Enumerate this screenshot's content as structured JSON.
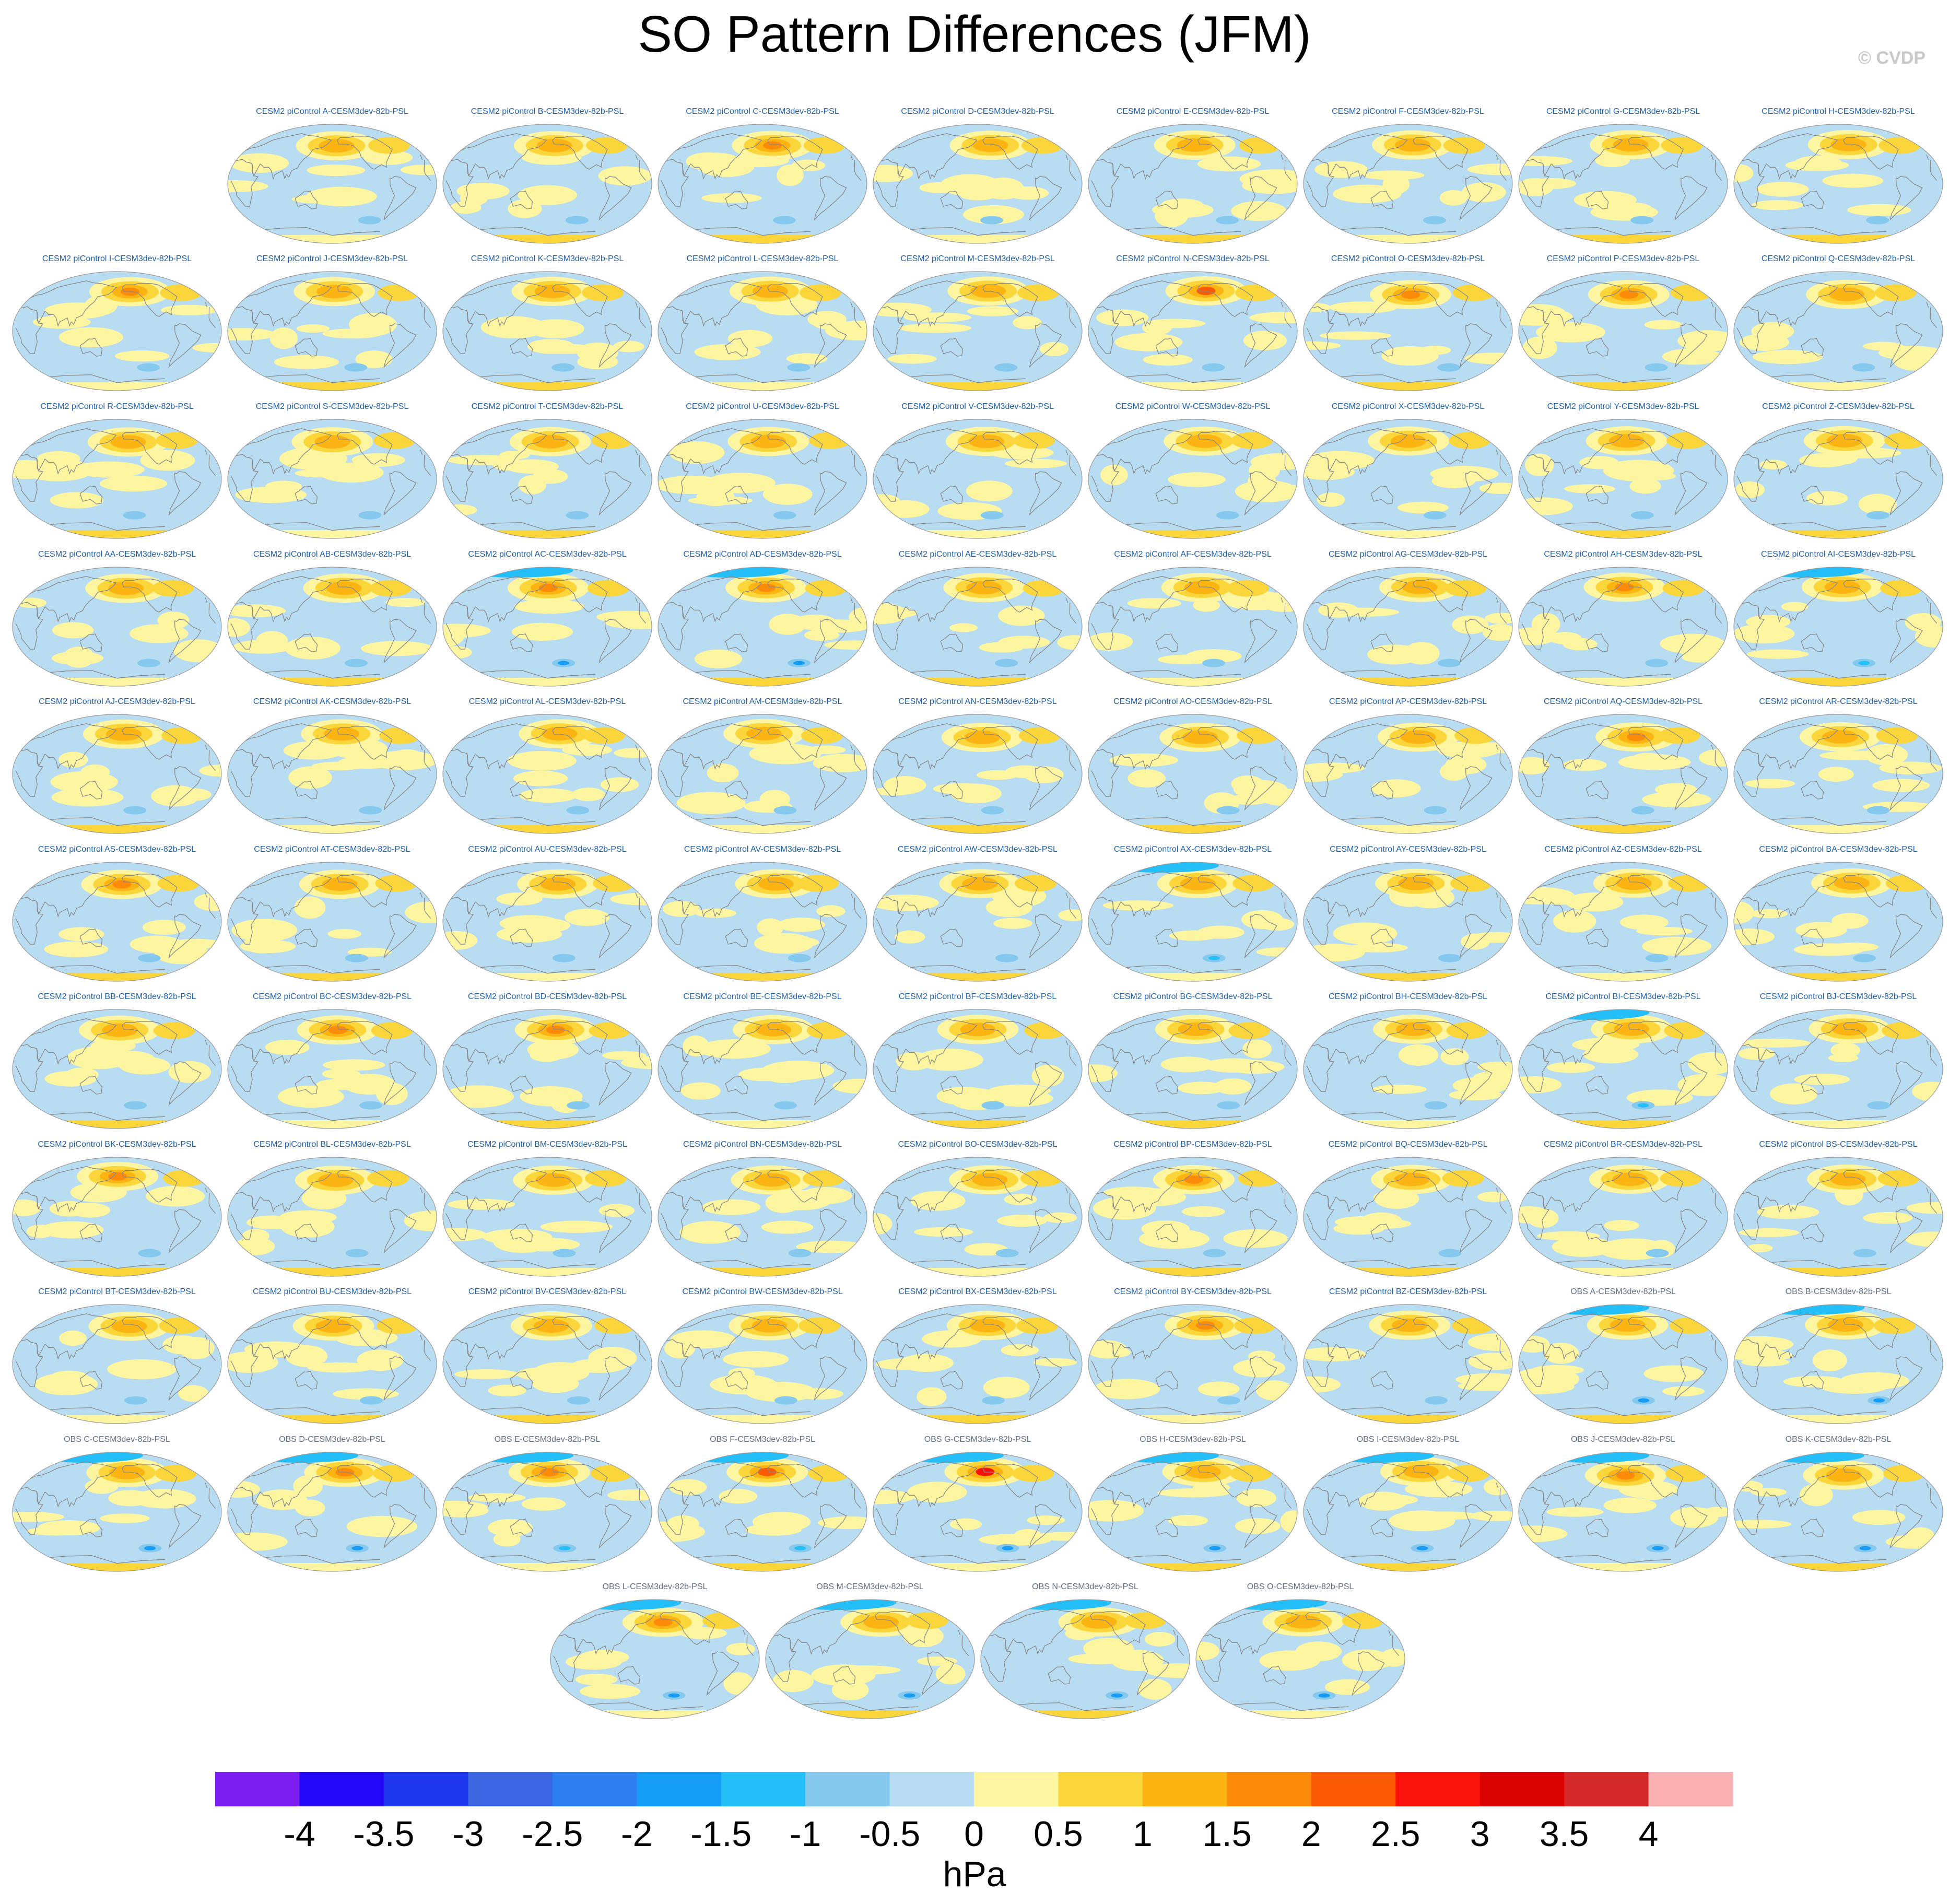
{
  "title": "SO Pattern Differences (JFM)",
  "credit": "© CVDP",
  "colors": {
    "levels": [
      "#7b1cf1",
      "#2208f6",
      "#1f36ef",
      "#3b67e3",
      "#2d7ff0",
      "#149cf7",
      "#24bff9",
      "#86c9ee",
      "#b8dcf2",
      "#fdf5a0",
      "#fbd63a",
      "#fcb413",
      "#fc8b0a",
      "#fb5a05",
      "#f91209",
      "#d90201",
      "#d42a2b",
      "#fbb0b3"
    ],
    "land_outline": "#8a8a8a",
    "title_model": "#1f5fa8",
    "title_obs": "#5f6f80"
  },
  "panel_titles": [
    "CESM2 piControl A-CESM3dev-82b-PSL",
    "CESM2 piControl B-CESM3dev-82b-PSL",
    "CESM2 piControl C-CESM3dev-82b-PSL",
    "CESM2 piControl D-CESM3dev-82b-PSL",
    "CESM2 piControl E-CESM3dev-82b-PSL",
    "CESM2 piControl F-CESM3dev-82b-PSL",
    "CESM2 piControl G-CESM3dev-82b-PSL",
    "CESM2 piControl H-CESM3dev-82b-PSL",
    "CESM2 piControl I-CESM3dev-82b-PSL",
    "CESM2 piControl J-CESM3dev-82b-PSL",
    "CESM2 piControl K-CESM3dev-82b-PSL",
    "CESM2 piControl L-CESM3dev-82b-PSL",
    "CESM2 piControl M-CESM3dev-82b-PSL",
    "CESM2 piControl N-CESM3dev-82b-PSL",
    "CESM2 piControl O-CESM3dev-82b-PSL",
    "CESM2 piControl P-CESM3dev-82b-PSL",
    "CESM2 piControl Q-CESM3dev-82b-PSL",
    "CESM2 piControl R-CESM3dev-82b-PSL",
    "CESM2 piControl S-CESM3dev-82b-PSL",
    "CESM2 piControl T-CESM3dev-82b-PSL",
    "CESM2 piControl U-CESM3dev-82b-PSL",
    "CESM2 piControl V-CESM3dev-82b-PSL",
    "CESM2 piControl W-CESM3dev-82b-PSL",
    "CESM2 piControl X-CESM3dev-82b-PSL",
    "CESM2 piControl Y-CESM3dev-82b-PSL",
    "CESM2 piControl Z-CESM3dev-82b-PSL",
    "CESM2 piControl AA-CESM3dev-82b-PSL",
    "CESM2 piControl AB-CESM3dev-82b-PSL",
    "CESM2 piControl AC-CESM3dev-82b-PSL",
    "CESM2 piControl AD-CESM3dev-82b-PSL",
    "CESM2 piControl AE-CESM3dev-82b-PSL",
    "CESM2 piControl AF-CESM3dev-82b-PSL",
    "CESM2 piControl AG-CESM3dev-82b-PSL",
    "CESM2 piControl AH-CESM3dev-82b-PSL",
    "CESM2 piControl AI-CESM3dev-82b-PSL",
    "CESM2 piControl AJ-CESM3dev-82b-PSL",
    "CESM2 piControl AK-CESM3dev-82b-PSL",
    "CESM2 piControl AL-CESM3dev-82b-PSL",
    "CESM2 piControl AM-CESM3dev-82b-PSL",
    "CESM2 piControl AN-CESM3dev-82b-PSL",
    "CESM2 piControl AO-CESM3dev-82b-PSL",
    "CESM2 piControl AP-CESM3dev-82b-PSL",
    "CESM2 piControl AQ-CESM3dev-82b-PSL",
    "CESM2 piControl AR-CESM3dev-82b-PSL",
    "CESM2 piControl AS-CESM3dev-82b-PSL",
    "CESM2 piControl AT-CESM3dev-82b-PSL",
    "CESM2 piControl AU-CESM3dev-82b-PSL",
    "CESM2 piControl AV-CESM3dev-82b-PSL",
    "CESM2 piControl AW-CESM3dev-82b-PSL",
    "CESM2 piControl AX-CESM3dev-82b-PSL",
    "CESM2 piControl AY-CESM3dev-82b-PSL",
    "CESM2 piControl AZ-CESM3dev-82b-PSL",
    "CESM2 piControl BA-CESM3dev-82b-PSL",
    "CESM2 piControl BB-CESM3dev-82b-PSL",
    "CESM2 piControl BC-CESM3dev-82b-PSL",
    "CESM2 piControl BD-CESM3dev-82b-PSL",
    "CESM2 piControl BE-CESM3dev-82b-PSL",
    "CESM2 piControl BF-CESM3dev-82b-PSL",
    "CESM2 piControl BG-CESM3dev-82b-PSL",
    "CESM2 piControl BH-CESM3dev-82b-PSL",
    "CESM2 piControl BI-CESM3dev-82b-PSL",
    "CESM2 piControl BJ-CESM3dev-82b-PSL",
    "CESM2 piControl BK-CESM3dev-82b-PSL",
    "CESM2 piControl BL-CESM3dev-82b-PSL",
    "CESM2 piControl BM-CESM3dev-82b-PSL",
    "CESM2 piControl BN-CESM3dev-82b-PSL",
    "CESM2 piControl BO-CESM3dev-82b-PSL",
    "CESM2 piControl BP-CESM3dev-82b-PSL",
    "CESM2 piControl BQ-CESM3dev-82b-PSL",
    "CESM2 piControl BR-CESM3dev-82b-PSL",
    "CESM2 piControl BS-CESM3dev-82b-PSL",
    "CESM2 piControl BT-CESM3dev-82b-PSL",
    "CESM2 piControl BU-CESM3dev-82b-PSL",
    "CESM2 piControl BV-CESM3dev-82b-PSL",
    "CESM2 piControl BW-CESM3dev-82b-PSL",
    "CESM2 piControl BX-CESM3dev-82b-PSL",
    "CESM2 piControl BY-CESM3dev-82b-PSL",
    "CESM2 piControl BZ-CESM3dev-82b-PSL",
    "OBS A-CESM3dev-82b-PSL",
    "OBS B-CESM3dev-82b-PSL",
    "OBS C-CESM3dev-82b-PSL",
    "OBS D-CESM3dev-82b-PSL",
    "OBS E-CESM3dev-82b-PSL",
    "OBS F-CESM3dev-82b-PSL",
    "OBS G-CESM3dev-82b-PSL",
    "OBS H-CESM3dev-82b-PSL",
    "OBS I-CESM3dev-82b-PSL",
    "OBS J-CESM3dev-82b-PSL",
    "OBS K-CESM3dev-82b-PSL",
    "OBS L-CESM3dev-82b-PSL",
    "OBS M-CESM3dev-82b-PSL",
    "OBS N-CESM3dev-82b-PSL",
    "OBS O-CESM3dev-82b-PSL"
  ],
  "chart_data": {
    "type": "heatmap",
    "title": "SO Pattern Differences (JFM)",
    "map_projection": "global Robinson-style, Pacific-centered",
    "colorbar": {
      "label": "hPa",
      "ticks": [
        -4,
        -3.5,
        -3,
        -2.5,
        -2,
        -1.5,
        -1,
        -0.5,
        0,
        0.5,
        1,
        1.5,
        2,
        2.5,
        3,
        3.5,
        4
      ],
      "tick_labels": [
        "-4",
        "-3.5",
        "-3",
        "-2.5",
        "-2",
        "-1.5",
        "-1",
        "-0.5",
        "0",
        "0.5",
        "1",
        "1.5",
        "2",
        "2.5",
        "3",
        "3.5",
        "4"
      ],
      "range": [
        -4.5,
        4.5
      ],
      "placement": "bottom"
    },
    "panel_count": 93,
    "panel_max_anomaly_hpa": [
      1.6,
      1.5,
      1.8,
      1.4,
      1.4,
      1.3,
      1.4,
      1.5,
      2.0,
      1.6,
      1.5,
      1.5,
      1.6,
      2.3,
      2.0,
      1.9,
      1.5,
      1.3,
      1.2,
      1.6,
      1.5,
      1.6,
      1.5,
      1.2,
      1.3,
      1.3,
      1.5,
      1.6,
      1.8,
      1.9,
      1.5,
      1.2,
      1.4,
      1.7,
      1.6,
      1.5,
      1.4,
      1.3,
      1.4,
      1.4,
      1.4,
      1.5,
      1.7,
      1.4,
      1.7,
      1.5,
      1.6,
      1.6,
      1.5,
      1.5,
      1.4,
      1.6,
      1.3,
      1.6,
      1.7,
      1.9,
      1.6,
      1.3,
      1.6,
      1.6,
      1.4,
      1.4,
      1.7,
      1.5,
      1.4,
      1.4,
      1.3,
      1.7,
      1.6,
      1.2,
      1.3,
      1.5,
      1.6,
      1.5,
      1.3,
      1.5,
      1.8,
      1.5,
      1.6,
      1.5,
      1.6,
      1.7,
      1.8,
      2.4,
      2.7,
      1.6,
      1.6,
      1.8,
      1.6,
      1.7,
      1.4,
      1.6,
      1.6
    ],
    "panel_min_anomaly_hpa": [
      -1.2,
      -1.1,
      -1.1,
      -1.0,
      -1.0,
      -1.0,
      -1.0,
      -1.0,
      -1.0,
      -1.0,
      -1.1,
      -1.0,
      -1.0,
      -1.1,
      -1.0,
      -1.0,
      -1.0,
      -1.0,
      -1.1,
      -1.0,
      -1.0,
      -1.0,
      -1.0,
      -1.0,
      -1.0,
      -1.0,
      -1.0,
      -1.1,
      -1.6,
      -1.6,
      -1.0,
      -1.0,
      -1.0,
      -1.0,
      -1.5,
      -1.0,
      -1.0,
      -1.0,
      -1.0,
      -1.0,
      -1.0,
      -1.0,
      -1.0,
      -1.0,
      -1.2,
      -1.0,
      -1.0,
      -1.0,
      -1.0,
      -1.4,
      -1.0,
      -1.0,
      -1.0,
      -1.0,
      -1.0,
      -1.0,
      -1.0,
      -1.0,
      -1.0,
      -1.0,
      -1.3,
      -1.0,
      -1.0,
      -1.0,
      -1.0,
      -1.0,
      -1.0,
      -1.0,
      -1.0,
      -1.0,
      -1.0,
      -1.0,
      -1.0,
      -1.0,
      -1.0,
      -1.0,
      -1.0,
      -1.0,
      -1.6,
      -1.6,
      -1.6,
      -1.6,
      -1.5,
      -1.5,
      -1.6,
      -1.6,
      -1.7,
      -1.7,
      -1.6,
      -1.6,
      -1.7,
      -1.6,
      -1.6
    ]
  }
}
